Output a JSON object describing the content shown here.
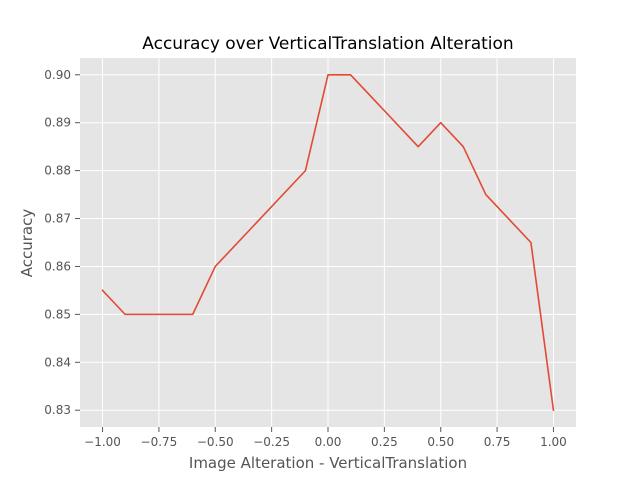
{
  "chart_data": {
    "type": "line",
    "title": "Accuracy over VerticalTranslation Alteration",
    "xlabel": "Image Alteration - VerticalTranslation",
    "ylabel": "Accuracy",
    "xlim": [
      -1.1,
      1.1
    ],
    "ylim": [
      0.8265,
      0.9035
    ],
    "xticks": [
      -1.0,
      -0.75,
      -0.5,
      -0.25,
      0.0,
      0.25,
      0.5,
      0.75,
      1.0
    ],
    "xtick_labels": [
      "−1.00",
      "−0.75",
      "−0.50",
      "−0.25",
      "0.00",
      "0.25",
      "0.50",
      "0.75",
      "1.00"
    ],
    "yticks": [
      0.83,
      0.84,
      0.85,
      0.86,
      0.87,
      0.88,
      0.89,
      0.9
    ],
    "ytick_labels": [
      "0.83",
      "0.84",
      "0.85",
      "0.86",
      "0.87",
      "0.88",
      "0.89",
      "0.90"
    ],
    "grid": true,
    "background": "#e5e5e5",
    "gridline_color": "#ffffff",
    "tick_color": "#555555",
    "series": [
      {
        "color": "#e24a33",
        "x": [
          -1.0,
          -0.9,
          -0.8,
          -0.7,
          -0.6,
          -0.5,
          -0.1,
          0.0,
          0.1,
          0.4,
          0.5,
          0.6,
          0.7,
          0.9,
          1.0
        ],
        "y": [
          0.855,
          0.85,
          0.85,
          0.85,
          0.85,
          0.86,
          0.88,
          0.9,
          0.9,
          0.885,
          0.89,
          0.885,
          0.875,
          0.865,
          0.83
        ]
      }
    ]
  }
}
